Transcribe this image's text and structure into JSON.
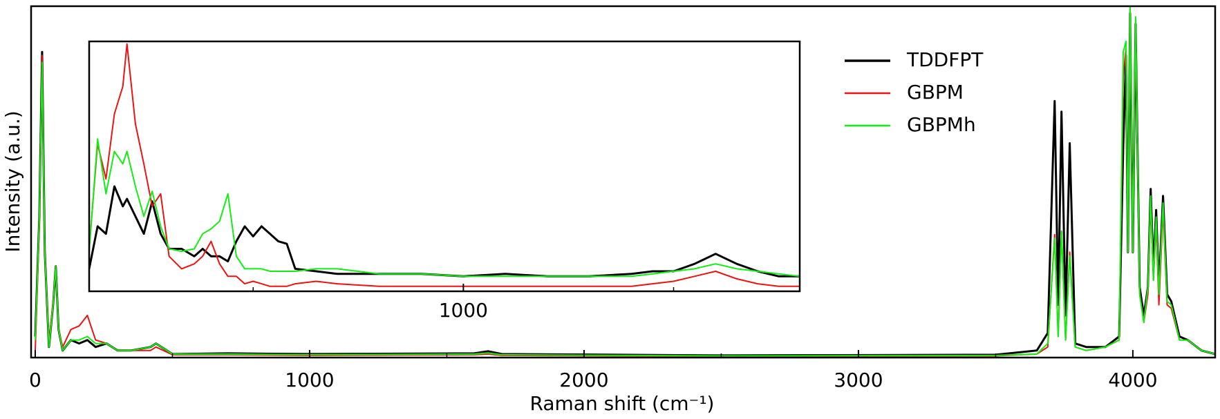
{
  "chart_data": [
    {
      "type": "line",
      "x_label": "Raman shift (cm⁻¹)",
      "y_label": "Intensity (a.u.)",
      "x": [
        0,
        15,
        25,
        35,
        50,
        65,
        75,
        85,
        100,
        130,
        160,
        190,
        220,
        260,
        300,
        350,
        420,
        440,
        500,
        700,
        1000,
        1600,
        1650,
        1700,
        2500,
        3500,
        3650,
        3690,
        3715,
        3728,
        3740,
        3755,
        3770,
        3790,
        3830,
        3900,
        3950,
        3965,
        3975,
        3982,
        3990,
        4000,
        4010,
        4025,
        4040,
        4055,
        4065,
        4075,
        4085,
        4095,
        4110,
        4125,
        4140,
        4170,
        4200,
        4250,
        4300
      ],
      "series": [
        {
          "name": "TDDFPT",
          "color": "#000000",
          "values": [
            0.06,
            0.4,
            0.87,
            0.3,
            0.03,
            0.15,
            0.26,
            0.08,
            0.02,
            0.05,
            0.04,
            0.05,
            0.03,
            0.04,
            0.02,
            0.02,
            0.03,
            0.04,
            0.01,
            0.012,
            0.01,
            0.012,
            0.018,
            0.01,
            0.006,
            0.008,
            0.02,
            0.07,
            0.73,
            0.15,
            0.7,
            0.12,
            0.61,
            0.04,
            0.03,
            0.03,
            0.06,
            0.6,
            0.86,
            0.3,
            0.98,
            0.3,
            0.95,
            0.2,
            0.12,
            0.2,
            0.48,
            0.25,
            0.42,
            0.2,
            0.46,
            0.18,
            0.16,
            0.06,
            0.05,
            0.02,
            0.01
          ]
        },
        {
          "name": "GBPM",
          "color": "#ee1111",
          "values": [
            0.02,
            0.38,
            0.86,
            0.3,
            0.04,
            0.16,
            0.26,
            0.08,
            0.03,
            0.08,
            0.09,
            0.12,
            0.05,
            0.04,
            0.02,
            0.02,
            0.02,
            0.03,
            0.008,
            0.008,
            0.006,
            0.008,
            0.01,
            0.006,
            0.004,
            0.005,
            0.01,
            0.03,
            0.35,
            0.06,
            0.36,
            0.05,
            0.3,
            0.03,
            0.02,
            0.03,
            0.05,
            0.8,
            0.88,
            0.3,
            1.0,
            0.3,
            0.96,
            0.18,
            0.1,
            0.18,
            0.45,
            0.22,
            0.38,
            0.15,
            0.42,
            0.15,
            0.14,
            0.05,
            0.05,
            0.02,
            0.01
          ]
        },
        {
          "name": "GBPMh",
          "color": "#11ee11",
          "values": [
            0.05,
            0.4,
            0.84,
            0.3,
            0.03,
            0.15,
            0.26,
            0.08,
            0.02,
            0.05,
            0.05,
            0.06,
            0.04,
            0.04,
            0.02,
            0.02,
            0.03,
            0.04,
            0.01,
            0.01,
            0.008,
            0.01,
            0.013,
            0.008,
            0.005,
            0.006,
            0.01,
            0.04,
            0.34,
            0.06,
            0.36,
            0.05,
            0.29,
            0.03,
            0.02,
            0.03,
            0.05,
            0.87,
            0.9,
            0.3,
            1.0,
            0.3,
            0.97,
            0.18,
            0.1,
            0.2,
            0.46,
            0.22,
            0.4,
            0.18,
            0.44,
            0.16,
            0.15,
            0.05,
            0.05,
            0.02,
            0.01
          ]
        }
      ],
      "xlim": [
        -15,
        4300
      ],
      "xticks": [
        0,
        1000,
        2000,
        3000,
        4000
      ],
      "xminor": [
        500,
        1500,
        2500,
        3500
      ],
      "ylim": [
        0,
        1
      ],
      "legend": "upper right"
    },
    {
      "type": "line",
      "x": [
        110,
        130,
        150,
        170,
        190,
        200,
        220,
        240,
        260,
        280,
        300,
        330,
        360,
        380,
        400,
        420,
        440,
        460,
        480,
        500,
        520,
        540,
        560,
        580,
        600,
        650,
        700,
        800,
        900,
        1000,
        1100,
        1200,
        1300,
        1400,
        1450,
        1500,
        1550,
        1600,
        1650,
        1700,
        1750,
        1800
      ],
      "series": [
        {
          "color": "#000000",
          "values": [
            0.09,
            0.26,
            0.23,
            0.42,
            0.34,
            0.37,
            0.3,
            0.23,
            0.36,
            0.23,
            0.17,
            0.17,
            0.14,
            0.17,
            0.14,
            0.14,
            0.12,
            0.2,
            0.26,
            0.22,
            0.26,
            0.23,
            0.2,
            0.19,
            0.09,
            0.08,
            0.07,
            0.07,
            0.07,
            0.06,
            0.07,
            0.06,
            0.06,
            0.07,
            0.08,
            0.08,
            0.11,
            0.15,
            0.11,
            0.08,
            0.06,
            0.06
          ]
        },
        {
          "color": "#ee1111",
          "values": [
            0.17,
            0.59,
            0.45,
            0.71,
            0.82,
            0.99,
            0.67,
            0.51,
            0.34,
            0.39,
            0.14,
            0.09,
            0.11,
            0.14,
            0.2,
            0.11,
            0.06,
            0.06,
            0.03,
            0.04,
            0.03,
            0.02,
            0.02,
            0.02,
            0.03,
            0.04,
            0.03,
            0.02,
            0.02,
            0.02,
            0.02,
            0.02,
            0.02,
            0.02,
            0.03,
            0.04,
            0.06,
            0.08,
            0.05,
            0.03,
            0.02,
            0.02
          ]
        },
        {
          "color": "#11ee11",
          "values": [
            0.16,
            0.61,
            0.39,
            0.56,
            0.51,
            0.56,
            0.42,
            0.3,
            0.4,
            0.26,
            0.17,
            0.16,
            0.17,
            0.23,
            0.25,
            0.28,
            0.39,
            0.14,
            0.09,
            0.09,
            0.09,
            0.08,
            0.08,
            0.08,
            0.08,
            0.09,
            0.09,
            0.07,
            0.07,
            0.06,
            0.06,
            0.06,
            0.06,
            0.06,
            0.07,
            0.08,
            0.09,
            0.11,
            0.09,
            0.08,
            0.07,
            0.06
          ]
        }
      ],
      "xlim": [
        110,
        1800
      ],
      "xticks": [
        1000
      ],
      "xminor": [
        500,
        1500
      ],
      "ylim": [
        0,
        1
      ]
    }
  ]
}
